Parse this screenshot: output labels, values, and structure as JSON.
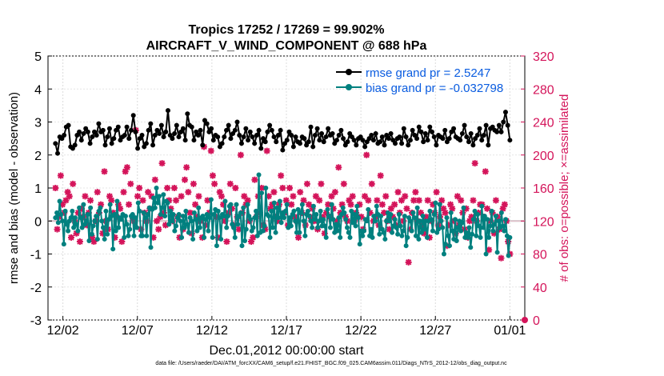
{
  "chart_data": {
    "type": "line",
    "title_line1": "Tropics 17252 / 17269 = 99.902%",
    "title_line2": "AIRCRAFT_V_WIND_COMPONENT @ 688 hPa",
    "xlabel": "Dec.01,2012 00:00:00 start",
    "ylabel_left": "rmse and bias (model - observation)",
    "ylabel_right": "# of obs: o=possible; ×=assimilated",
    "footnote": "data file: /Users/raeder/DAI/ATM_forcXX/CAM6_setup/f.e21.FHIST_BGC.f09_025.CAM6assim.011/Diags_NTrS_2012-12/obs_diag_output.nc",
    "x_tick_labels": [
      "12/02",
      "12/07",
      "12/12",
      "12/17",
      "12/22",
      "12/27",
      "01/01"
    ],
    "x_tick_days": [
      1.5,
      6.5,
      11.5,
      16.5,
      21.5,
      26.5,
      31.5
    ],
    "xlim": [
      0.5,
      32.5
    ],
    "ylim_left": [
      -3,
      5
    ],
    "y_left_ticks": [
      "-3",
      "-2",
      "-1",
      "0",
      "1",
      "2",
      "3",
      "4",
      "5"
    ],
    "ylim_right": [
      0,
      320
    ],
    "y_right_ticks": [
      "0",
      "40",
      "80",
      "120",
      "160",
      "200",
      "240",
      "280",
      "320"
    ],
    "zero_line": 0,
    "obs_reference_line": 120,
    "colors": {
      "rmse": "#000000",
      "bias": "#00807f",
      "obs": "#d4145a",
      "legend_text": "#0a5ce0",
      "zero": "#b8b8b8"
    },
    "series": [
      {
        "name": "rmse grand pr = 2.5247",
        "key": "rmse",
        "values": [
          2.35,
          2.05,
          2.55,
          2.5,
          2.6,
          2.85,
          2.9,
          2.25,
          2.2,
          2.3,
          2.6,
          2.7,
          2.45,
          2.65,
          2.8,
          2.7,
          2.35,
          2.55,
          2.7,
          2.6,
          2.95,
          2.7,
          2.75,
          2.3,
          2.55,
          2.8,
          2.35,
          2.5,
          2.75,
          2.85,
          2.45,
          2.55,
          2.6,
          2.85,
          2.5,
          2.75,
          3.2,
          2.7,
          2.2,
          2.5,
          2.6,
          2.25,
          2.35,
          2.75,
          2.95,
          2.3,
          2.6,
          2.75,
          2.65,
          2.9,
          2.55,
          2.7,
          3.35,
          2.6,
          2.5,
          2.65,
          2.9,
          2.55,
          2.7,
          2.8,
          2.45,
          3.25,
          2.9,
          2.85,
          2.45,
          2.7,
          2.6,
          2.75,
          2.3,
          3.05,
          2.95,
          2.7,
          2.8,
          2.45,
          2.6,
          2.55,
          2.25,
          2.35,
          2.55,
          2.75,
          2.9,
          2.5,
          2.65,
          2.75,
          3.0,
          2.6,
          2.35,
          2.55,
          2.8,
          2.45,
          2.7,
          2.55,
          2.35,
          2.6,
          2.75,
          2.2,
          2.5,
          2.4,
          2.7,
          2.9,
          2.75,
          2.55,
          2.4,
          2.6,
          2.75,
          2.15,
          2.35,
          2.45,
          2.7,
          2.6,
          2.25,
          2.55,
          2.4,
          2.35,
          2.55,
          2.5,
          2.3,
          2.4,
          2.85,
          2.25,
          2.6,
          2.8,
          2.45,
          2.65,
          2.4,
          2.55,
          2.8,
          2.6,
          2.65,
          2.35,
          2.45,
          2.6,
          2.75,
          2.5,
          2.3,
          2.4,
          2.65,
          2.55,
          2.45,
          2.3,
          2.5,
          2.55,
          2.45,
          2.25,
          2.4,
          2.5,
          2.6,
          2.45,
          2.65,
          2.35,
          2.4,
          2.55,
          2.3,
          2.6,
          2.5,
          2.65,
          2.45,
          2.35,
          2.5,
          2.55,
          2.35,
          2.8,
          2.55,
          2.3,
          2.45,
          2.75,
          2.6,
          2.5,
          2.85,
          2.7,
          2.4,
          2.65,
          2.45,
          2.85,
          2.7,
          2.55,
          2.3,
          2.6,
          2.55,
          2.5,
          2.75,
          2.4,
          2.5,
          2.7,
          2.8,
          2.55,
          2.5,
          2.45,
          2.65,
          2.9,
          2.55,
          2.4,
          2.65,
          2.3,
          2.5,
          2.6,
          2.8,
          2.45,
          2.6,
          2.9,
          2.3,
          2.8,
          2.85,
          2.75,
          2.7,
          2.9,
          2.7,
          3.0,
          3.3,
          2.9,
          2.45
        ]
      },
      {
        "name": "bias grand pr = -0.032798",
        "key": "bias",
        "values": [
          0.1,
          0.25,
          -0.05,
          0.6,
          0.2,
          0.0,
          -0.7,
          0.3,
          -0.1,
          -0.3,
          0.0,
          0.1,
          0.3,
          -0.2,
          0.1,
          -0.1,
          -0.3,
          0.4,
          0.1,
          -0.2,
          0.5,
          -0.1,
          0.0,
          0.2,
          -0.6,
          0.4,
          -0.4,
          -0.15,
          0.0,
          0.15,
          -0.55,
          0.3,
          0.4,
          0.0,
          -0.2,
          -0.55,
          0.3,
          -0.4,
          0.05,
          0.5,
          0.15,
          -0.85,
          0.2,
          -0.3,
          0.6,
          -0.2,
          0.1,
          0.05,
          0.2,
          -0.5,
          0.15,
          -0.1,
          -0.45,
          -0.25,
          0.15,
          0.2,
          -0.45,
          0.1,
          -0.2,
          0.55,
          0.3,
          -0.45,
          -0.45,
          0.25,
          0.1,
          -0.45,
          0.2,
          0.4,
          -0.8,
          0.35,
          0.7,
          0.4,
          1.0,
          0.55,
          0.75,
          0.2,
          0.4,
          0.8,
          0.15,
          0.6,
          0.55,
          -0.1,
          0.3,
          0.0,
          0.2,
          -0.3,
          -0.15,
          0.1,
          0.2,
          0.0,
          -0.5,
          0.15,
          -0.2,
          0.3,
          -0.1,
          -0.35,
          0.1,
          0.0,
          -0.55,
          0.25,
          0.05,
          -0.3,
          0.4,
          -0.2,
          0.1,
          0.15,
          -0.5,
          0.05,
          0.2,
          -0.3,
          0.1,
          0.65,
          -0.5,
          0.2,
          0.35,
          -0.75,
          0.3,
          0.1,
          -0.55,
          0.2,
          0.15,
          0.6,
          -0.2,
          0.15,
          0.45,
          0.5,
          -0.1,
          -0.2,
          -0.5,
          0.5,
          -0.1,
          0.15,
          0.25,
          -0.75,
          0.4,
          -0.6,
          -0.25,
          0.5,
          0.15,
          0.05,
          -0.3,
          -0.2,
          0.1,
          0.3,
          -0.45,
          1.4,
          -0.35,
          0.85,
          -0.3,
          -0.15,
          1.0,
          0.2,
          0.15,
          -0.5,
          0.3,
          -0.2,
          0.55,
          -0.35,
          0.4,
          0.1,
          0.6,
          -0.05,
          0.25,
          0.1,
          0.3,
          0.5,
          -0.2,
          0.1,
          -0.15,
          0.2,
          0.3,
          0.0,
          -0.35,
          0.35,
          -0.35,
          0.25,
          0.5,
          0.0,
          -0.45,
          0.2,
          0.3,
          0.15,
          0.0,
          -0.2,
          0.45,
          0.05,
          0.2,
          -0.2,
          0.0,
          0.3,
          -0.15,
          0.05,
          -0.15,
          -0.5,
          0.35,
          0.15,
          -0.2,
          0.5,
          0.05,
          -0.35,
          -0.1,
          -0.3,
          0.1,
          -0.5,
          0.2,
          0.4,
          0.25,
          0.05,
          -0.2,
          -0.35,
          -0.5,
          0.3,
          -0.05,
          0.2,
          -0.15,
          0.45,
          0.1,
          -0.7,
          -0.3,
          -0.45,
          -0.3,
          0.05,
          0.0,
          0.35,
          -0.45,
          -0.25,
          -0.5,
          0.15,
          0.0,
          0.45,
          0.2,
          -0.4,
          0.15,
          -0.25,
          -0.35,
          -0.55,
          0.0,
          0.25,
          0.0,
          0.2,
          -0.35,
          -0.15,
          0.05,
          -0.2,
          -0.4,
          0.2,
          -0.15,
          -0.45,
          -0.3,
          0.15,
          -0.75,
          -0.5,
          0.1,
          0.0,
          -0.3,
          0.25,
          0.1,
          -0.45,
          0.4,
          -0.55,
          0.0,
          -0.35,
          0.15,
          -0.25,
          0.0,
          -0.5,
          0.0,
          0.3,
          0.05,
          -0.3,
          0.2,
          0.55,
          -0.35,
          -0.25,
          0.5,
          0.0,
          -0.2,
          -1.0,
          -0.7,
          0.1,
          -0.45,
          -0.75,
          0.25,
          -0.3,
          -0.55,
          0.05,
          -0.6,
          -0.2,
          0.0,
          -0.3,
          -0.05,
          0.4,
          -0.5,
          -0.35,
          -0.5,
          -0.2,
          -0.8,
          -0.4,
          0.05,
          0.3,
          -0.45,
          0.2,
          -0.15,
          -0.5,
          0.45,
          -0.2,
          0.15,
          -1.0,
          0.05,
          -0.5,
          -0.15,
          0.3,
          -0.3,
          -0.1,
          0.15,
          -0.95,
          0.0,
          -0.2,
          0.25,
          -0.15,
          -0.3,
          0.05,
          -0.45,
          -1.05,
          -0.5
        ]
      },
      {
        "name": "obs possible / assimilated",
        "key": "obs",
        "values": [
          160,
          110,
          125,
          175,
          140,
          130,
          145,
          155,
          150,
          100,
          165,
          120,
          105,
          130,
          95,
          135,
          125,
          150,
          115,
          130,
          145,
          100,
          95,
          120,
          155,
          130,
          140,
          105,
          180,
          120,
          110,
          150,
          145,
          130,
          100,
          125,
          140,
          135,
          95,
          155,
          180,
          185,
          140,
          165,
          125,
          120,
          230,
          150,
          160,
          110,
          145,
          130,
          120,
          155,
          135,
          150,
          100,
          170,
          120,
          110,
          125,
          190,
          130,
          115,
          160,
          145,
          135,
          120,
          160,
          145,
          125,
          100,
          150,
          110,
          170,
          185,
          155,
          130,
          105,
          165,
          140,
          125,
          150,
          120,
          100,
          210,
          115,
          145,
          130,
          205,
          175,
          165,
          125,
          100,
          155,
          150,
          140,
          120,
          95,
          130,
          165,
          135,
          115,
          160,
          125,
          110,
          200,
          130,
          150,
          140,
          145,
          120,
          95,
          100,
          170,
          125,
          150,
          130,
          160,
          115,
          110,
          205,
          150,
          135,
          140,
          155,
          125,
          120,
          140,
          175,
          160,
          130,
          145,
          115,
          160,
          140,
          150,
          125,
          120,
          100,
          155,
          130,
          145,
          115,
          165,
          140,
          125,
          135,
          120,
          150,
          110,
          145,
          165,
          125,
          105,
          130,
          140,
          125,
          150,
          135,
          155,
          120,
          185,
          130,
          140,
          165,
          125,
          120,
          145,
          140,
          150,
          120,
          130,
          125,
          140,
          125,
          110,
          150,
          200,
          145,
          130,
          165,
          120,
          125,
          145,
          115,
          175,
          140,
          130,
          150,
          120,
          110,
          135,
          125,
          140,
          115,
          155,
          130,
          145,
          120,
          150,
          135,
          70,
          110,
          130,
          145,
          155,
          120,
          145,
          130,
          115,
          105,
          125,
          145,
          100,
          120,
          140,
          130,
          155,
          115,
          125,
          145,
          135,
          130,
          90,
          115,
          140,
          135,
          120,
          105,
          150,
          115,
          145,
          130,
          110,
          135,
          100,
          120,
          125,
          145,
          190,
          120,
          130,
          140,
          140,
          125,
          180,
          135,
          85,
          120,
          130,
          105,
          145,
          125,
          110,
          75,
          135,
          140,
          120,
          95,
          80
        ]
      }
    ]
  },
  "obs_zero_marker": {
    "day": 32.5,
    "value": 0
  }
}
